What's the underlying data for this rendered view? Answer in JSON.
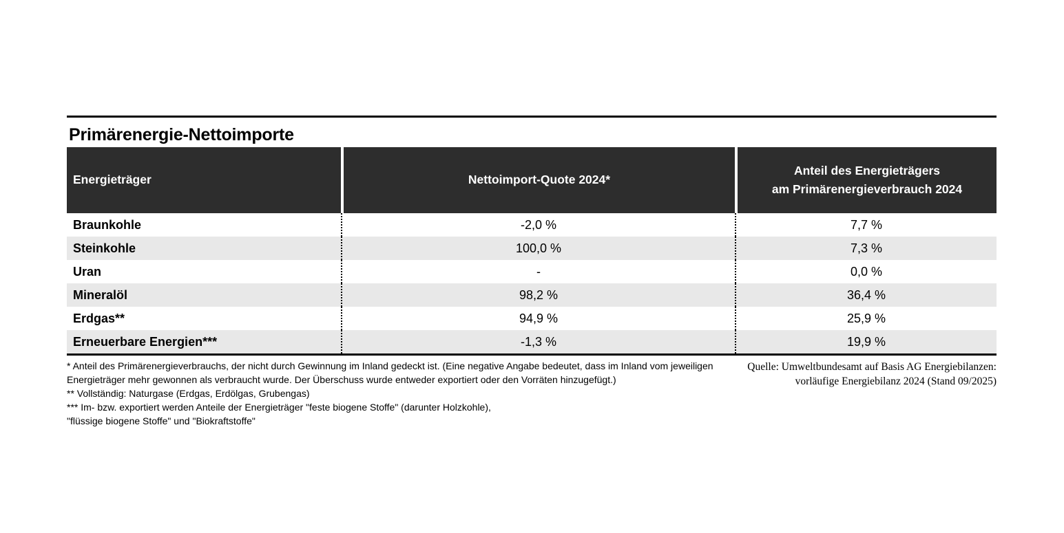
{
  "title": "Primärenergie-Nettoimporte",
  "colors": {
    "header_bg": "#2d2d2d",
    "row_alt": "#e8e8e8",
    "rule": "#000000",
    "header_text": "#ffffff"
  },
  "table": {
    "header": {
      "col1": "Energieträger",
      "col2": "Nettoimport-Quote 2024*",
      "col3_line1": "Anteil des Energieträgers",
      "col3_line2": "am Primärenergieverbrauch 2024"
    },
    "rows": [
      {
        "carrier": "Braunkohle",
        "quota": "-2,0 %",
        "share": "7,7 %"
      },
      {
        "carrier": "Steinkohle",
        "quota": "100,0 %",
        "share": "7,3 %"
      },
      {
        "carrier": "Uran",
        "quota": "-",
        "share": "0,0 %"
      },
      {
        "carrier": "Mineralöl",
        "quota": "98,2 %",
        "share": "36,4 %"
      },
      {
        "carrier": "Erdgas**",
        "quota": "94,9 %",
        "share": "25,9 %"
      },
      {
        "carrier": "Erneuerbare Energien***",
        "quota": "-1,3 %",
        "share": "19,9 %"
      }
    ]
  },
  "footnotes": {
    "line1": "* Anteil des Primärenergieverbrauchs, der nicht durch Gewinnung im Inland gedeckt ist. (Eine negative Angabe bedeutet, dass im Inland vom jeweiligen",
    "line2": "Energieträger mehr gewonnen als verbraucht wurde. Der Überschuss wurde entweder exportiert oder den Vorräten hinzugefügt.)",
    "line3": "**  Vollständig: Naturgase (Erdgas, Erdölgas, Grubengas)",
    "line4": "*** Im- bzw. exportiert werden Anteile der Energieträger \"feste biogene Stoffe\" (darunter Holzkohle),",
    "line5": "\"flüssige biogene Stoffe\" und \"Biokraftstoffe\""
  },
  "source": {
    "line1": "Quelle: Umweltbundesamt auf Basis AG Energiebilanzen:",
    "line2": "vorläufige Energiebilanz 2024 (Stand 09/2025)"
  },
  "chart_data": {
    "type": "table",
    "title": "Primärenergie-Nettoimporte",
    "columns": [
      "Energieträger",
      "Nettoimport-Quote 2024*",
      "Anteil des Energieträgers am Primärenergieverbrauch 2024"
    ],
    "rows": [
      [
        "Braunkohle",
        "-2,0 %",
        "7,7 %"
      ],
      [
        "Steinkohle",
        "100,0 %",
        "7,3 %"
      ],
      [
        "Uran",
        "-",
        "0,0 %"
      ],
      [
        "Mineralöl",
        "98,2 %",
        "36,4 %"
      ],
      [
        "Erdgas**",
        "94,9 %",
        "25,9 %"
      ],
      [
        "Erneuerbare Energien***",
        "-1,3 %",
        "19,9 %"
      ]
    ],
    "numeric_values": {
      "nettoimport_quote_2024_percent": [
        -2.0,
        100.0,
        null,
        98.2,
        94.9,
        -1.3
      ],
      "anteil_primaerenergieverbrauch_2024_percent": [
        7.7,
        7.3,
        0.0,
        36.4,
        25.9,
        19.9
      ]
    },
    "units": "%",
    "source": "Quelle: Umweltbundesamt auf Basis AG Energiebilanzen: vorläufige Energiebilanz 2024 (Stand 09/2025)"
  }
}
